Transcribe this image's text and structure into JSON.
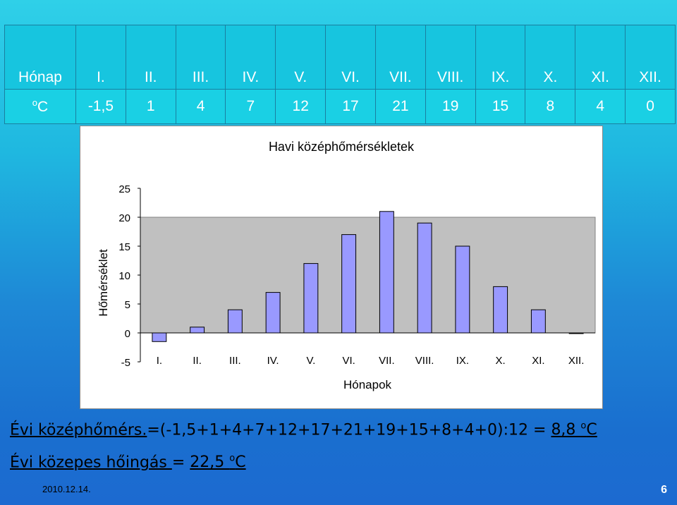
{
  "table": {
    "row1_label": "Hónap",
    "row2_label_sup": "o",
    "row2_label": "C",
    "months": [
      "I.",
      "II.",
      "III.",
      "IV.",
      "V.",
      "VI.",
      "VII.",
      "VIII.",
      "IX.",
      "X.",
      "XI.",
      "XII."
    ],
    "temps": [
      "-1,5",
      "1",
      "4",
      "7",
      "12",
      "17",
      "21",
      "19",
      "15",
      "8",
      "4",
      "0"
    ]
  },
  "chart_data": {
    "type": "bar",
    "title": "Havi középhőmérsékletek",
    "xlabel": "Hónapok",
    "ylabel": "Hőmérséklet",
    "categories": [
      "I.",
      "II.",
      "III.",
      "IV.",
      "V.",
      "VI.",
      "VII.",
      "VIII.",
      "IX.",
      "X.",
      "XI.",
      "XII."
    ],
    "values": [
      -1.5,
      1,
      4,
      7,
      12,
      17,
      21,
      19,
      15,
      8,
      4,
      0
    ],
    "yticks": [
      "-5",
      "0",
      "5",
      "10",
      "15",
      "20",
      "25"
    ],
    "ylim": [
      -5,
      25
    ],
    "bar_color": "#9999ff",
    "plot_bg": "#c0c0c0",
    "grid": false,
    "legend": false
  },
  "formula1": {
    "label": "Évi középhőmérs.",
    "expr": "=(-1,5+1+4+7+12+17+21+19+15+8+4+0):12 = ",
    "result": "8,8 ",
    "unit_sup": "o",
    "unit": "C"
  },
  "formula2": {
    "label": "Évi közepes hőingás ",
    "eq": "= ",
    "result": "22,5 ",
    "unit_sup": "o",
    "unit": "C"
  },
  "footer": {
    "date": "2010.12.14.",
    "page": "6"
  }
}
